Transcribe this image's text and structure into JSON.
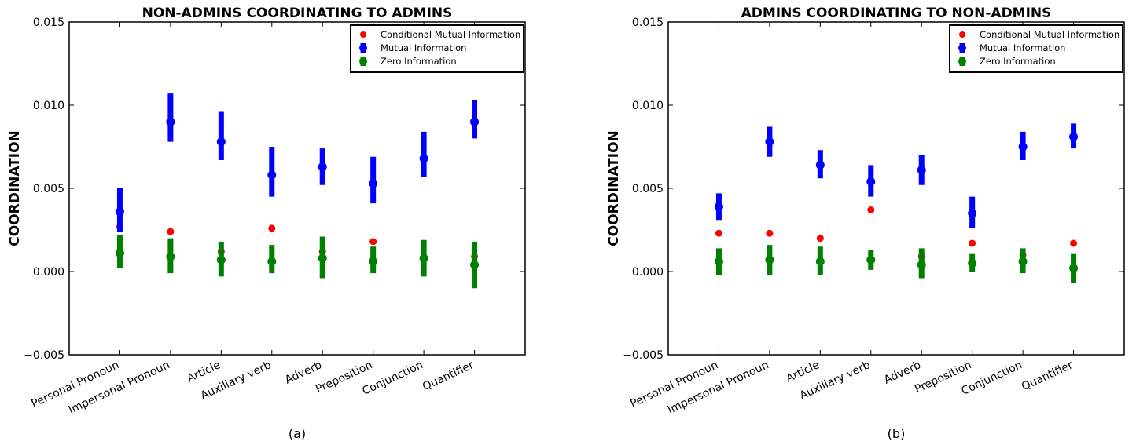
{
  "chart_data": [
    {
      "panel_label": "(a)",
      "type": "scatter",
      "title": "NON-ADMINS COORDINATING TO ADMINS",
      "ylabel": "COORDINATION",
      "xlabel": "",
      "ylim": [
        -0.005,
        0.015
      ],
      "yticks": [
        "0.015",
        "0.010",
        "0.005",
        "0.000",
        "−0.005"
      ],
      "ytick_values": [
        0.015,
        0.01,
        0.005,
        0.0,
        -0.005
      ],
      "grid": false,
      "legend_position": "top-right",
      "categories": [
        "Personal Pronoun",
        "Impersonal Pronoun",
        "Article",
        "Auxiliary verb",
        "Adverb",
        "Preposition",
        "Conjunction",
        "Quantifier"
      ],
      "series": [
        {
          "name": "Conditional Mutual Information",
          "color": "#ff0000",
          "marker": "dot",
          "values": [
            0.0027,
            0.0024,
            0.0012,
            0.0026,
            0.0012,
            0.0018,
            0.0008,
            0.0009
          ]
        },
        {
          "name": "Mutual Information",
          "color": "#0000ff",
          "marker": "errorbar",
          "values": [
            0.0036,
            0.009,
            0.0078,
            0.0058,
            0.0063,
            0.0053,
            0.0068,
            0.009
          ],
          "lower": [
            0.0024,
            0.0078,
            0.0067,
            0.0045,
            0.0052,
            0.0041,
            0.0057,
            0.008
          ],
          "upper": [
            0.005,
            0.0107,
            0.0096,
            0.0075,
            0.0074,
            0.0069,
            0.0084,
            0.0103
          ]
        },
        {
          "name": "Zero Information",
          "color": "#008000",
          "marker": "errorbar",
          "values": [
            0.0011,
            0.0009,
            0.0007,
            0.0006,
            0.0008,
            0.0006,
            0.0008,
            0.0004
          ],
          "lower": [
            0.0002,
            -0.0001,
            -0.0003,
            -0.0001,
            -0.0004,
            -0.0001,
            -0.0003,
            -0.001
          ],
          "upper": [
            0.0022,
            0.002,
            0.0018,
            0.0016,
            0.0021,
            0.0015,
            0.0019,
            0.0018
          ]
        }
      ]
    },
    {
      "panel_label": "(b)",
      "type": "scatter",
      "title": "ADMINS COORDINATING TO NON-ADMINS",
      "ylabel": "COORDINATION",
      "xlabel": "",
      "ylim": [
        -0.005,
        0.015
      ],
      "yticks": [
        "0.015",
        "0.010",
        "0.005",
        "0.000",
        "−0.005"
      ],
      "ytick_values": [
        0.015,
        0.01,
        0.005,
        0.0,
        -0.005
      ],
      "grid": false,
      "legend_position": "top-right",
      "categories": [
        "Personal Pronoun",
        "Impersonal Pronoun",
        "Article",
        "Auxiliary verb",
        "Adverb",
        "Preposition",
        "Conjunction",
        "Quantifier"
      ],
      "series": [
        {
          "name": "Conditional Mutual Information",
          "color": "#ff0000",
          "marker": "dot",
          "values": [
            0.0023,
            0.0023,
            0.002,
            0.0037,
            0.0009,
            0.0017,
            0.001,
            0.0017
          ]
        },
        {
          "name": "Mutual Information",
          "color": "#0000ff",
          "marker": "errorbar",
          "values": [
            0.0039,
            0.0078,
            0.0064,
            0.0054,
            0.0061,
            0.0035,
            0.0075,
            0.0081
          ],
          "lower": [
            0.0031,
            0.0069,
            0.0056,
            0.0045,
            0.0052,
            0.0026,
            0.0067,
            0.0074
          ],
          "upper": [
            0.0047,
            0.0087,
            0.0073,
            0.0064,
            0.007,
            0.0045,
            0.0084,
            0.0089
          ]
        },
        {
          "name": "Zero Information",
          "color": "#008000",
          "marker": "errorbar",
          "values": [
            0.0006,
            0.0007,
            0.0006,
            0.0007,
            0.0004,
            0.0005,
            0.0006,
            0.0002
          ],
          "lower": [
            -0.0002,
            -0.0002,
            -0.0002,
            0.0001,
            -0.0004,
            0.0,
            -0.0001,
            -0.0007
          ],
          "upper": [
            0.0014,
            0.0016,
            0.0015,
            0.0013,
            0.0014,
            0.0011,
            0.0014,
            0.0011
          ]
        }
      ]
    }
  ]
}
